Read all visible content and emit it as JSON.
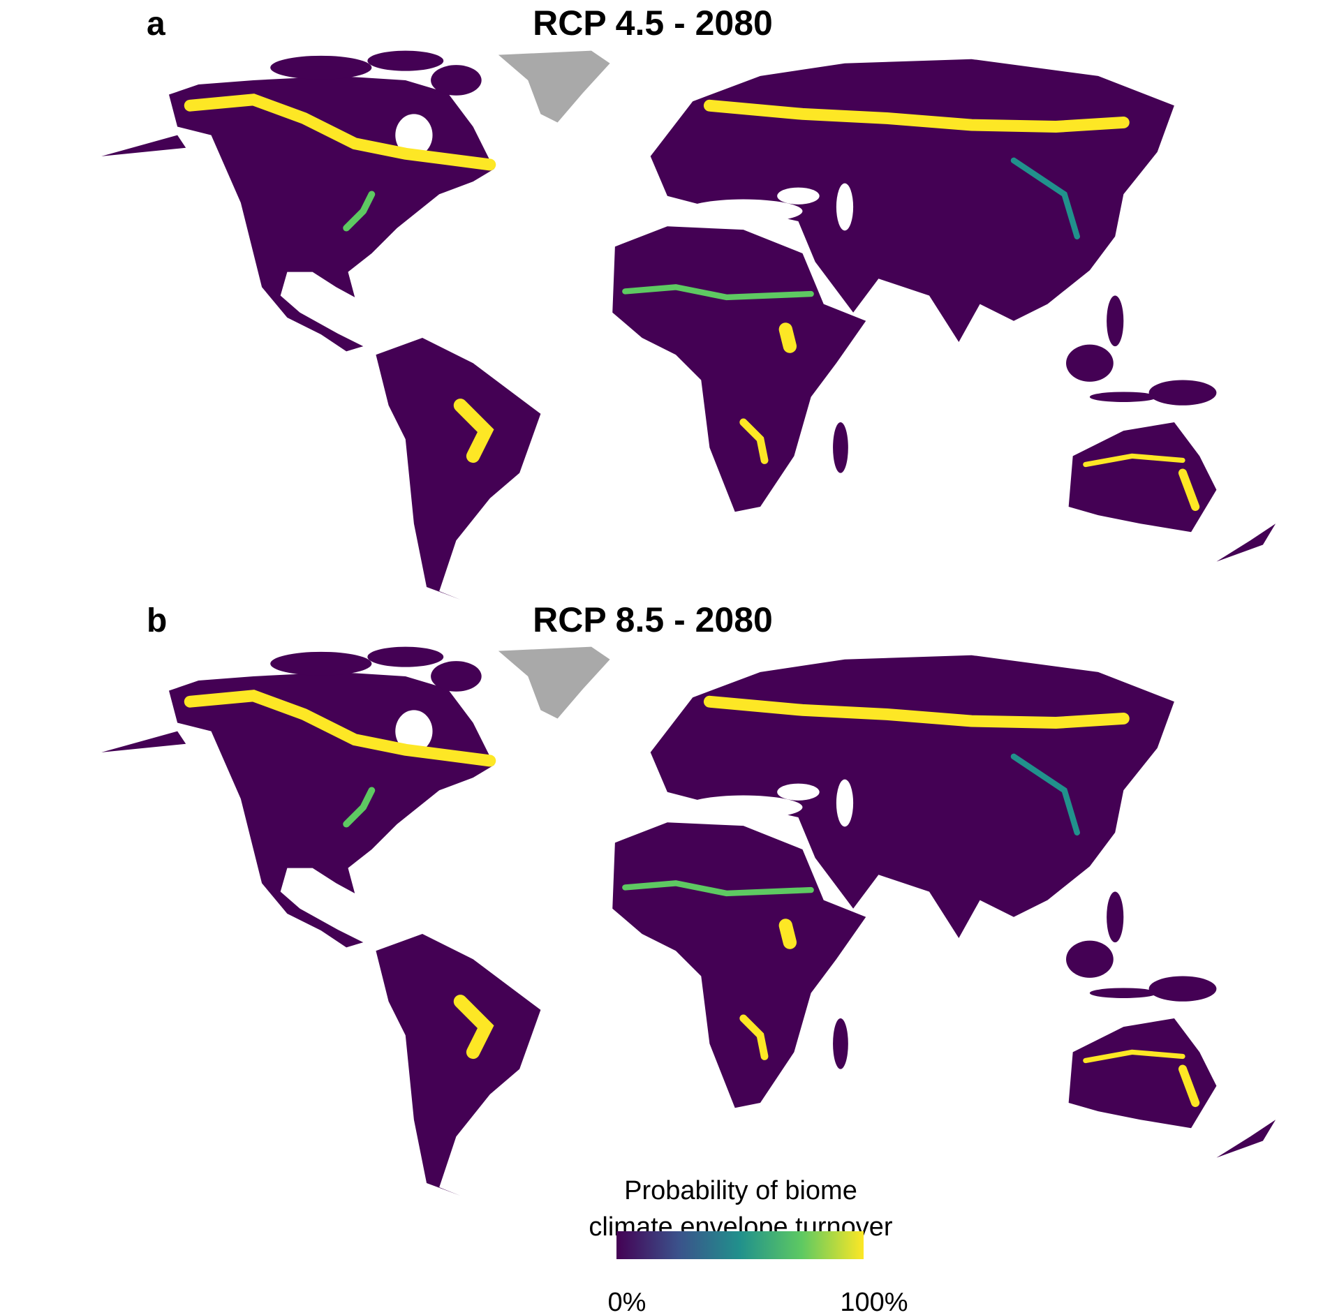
{
  "panels": [
    {
      "label": "a",
      "title": "RCP 4.5 - 2080"
    },
    {
      "label": "b",
      "title": "RCP 8.5 - 2080"
    }
  ],
  "legend": {
    "title": [
      "Probability of biome",
      "climate envelope turnover"
    ],
    "min_label": "0%",
    "max_label": "100%",
    "colors": [
      "#440154",
      "#3b528b",
      "#21918c",
      "#5ec962",
      "#fde725"
    ]
  }
}
